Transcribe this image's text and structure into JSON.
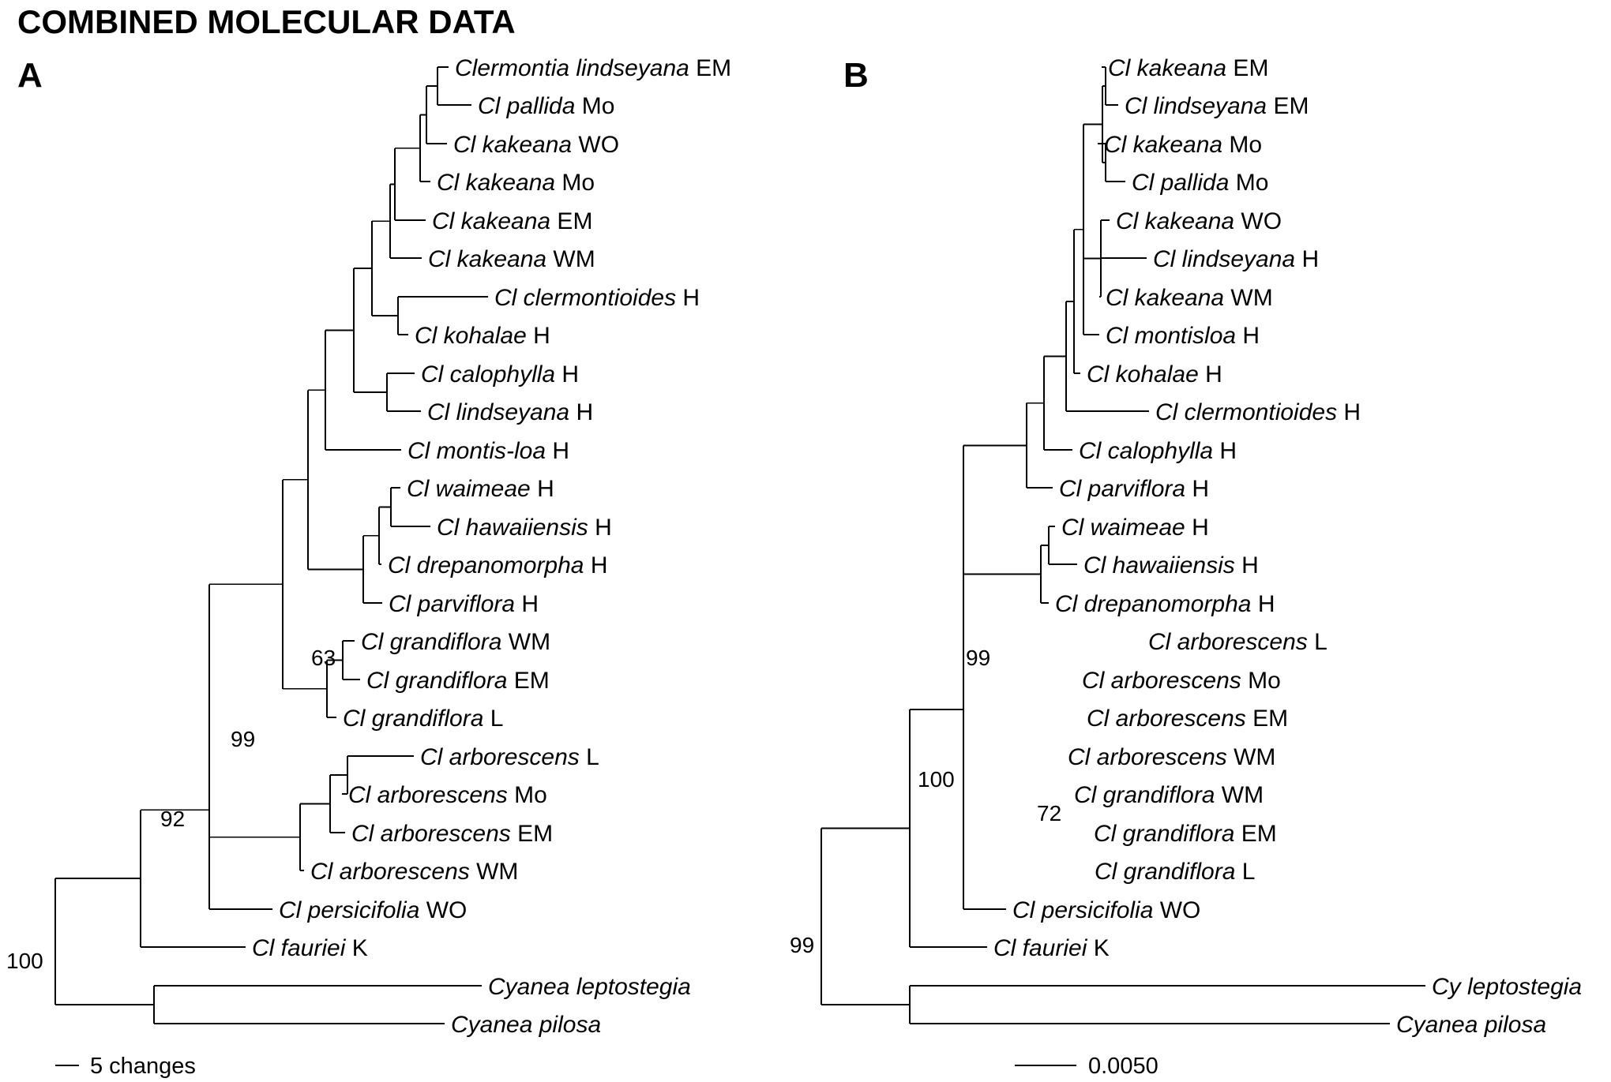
{
  "title": "COMBINED MOLECULAR DATA",
  "colors": {
    "line": "#000000",
    "text": "#000000",
    "background": "#ffffff"
  },
  "panels": [
    {
      "id": "A",
      "label": "A",
      "scale_label": "5 changes",
      "tips": [
        {
          "name": "Clermontia lindseyana",
          "region": "EM"
        },
        {
          "name": "Cl pallida",
          "region": "Mo"
        },
        {
          "name": "Cl kakeana",
          "region": "WO"
        },
        {
          "name": "Cl kakeana",
          "region": "Mo"
        },
        {
          "name": "Cl kakeana",
          "region": "EM"
        },
        {
          "name": "Cl kakeana",
          "region": "WM"
        },
        {
          "name": "Cl clermontioides",
          "region": "H"
        },
        {
          "name": "Cl kohalae",
          "region": "H"
        },
        {
          "name": "Cl calophylla",
          "region": "H"
        },
        {
          "name": "Cl lindseyana",
          "region": "H"
        },
        {
          "name": "Cl montis-loa",
          "region": "H"
        },
        {
          "name": "Cl waimeae",
          "region": "H"
        },
        {
          "name": "Cl hawaiiensis",
          "region": "H"
        },
        {
          "name": "Cl drepanomorpha",
          "region": "H"
        },
        {
          "name": "Cl parviflora",
          "region": "H"
        },
        {
          "name": "Cl grandiflora",
          "region": "WM"
        },
        {
          "name": "Cl grandiflora",
          "region": "EM"
        },
        {
          "name": "Cl grandiflora",
          "region": "L"
        },
        {
          "name": "Cl arborescens",
          "region": "L"
        },
        {
          "name": "Cl arborescens",
          "region": "Mo"
        },
        {
          "name": "Cl arborescens",
          "region": "EM"
        },
        {
          "name": "Cl arborescens",
          "region": "WM"
        },
        {
          "name": "Cl persicifolia",
          "region": "WO"
        },
        {
          "name": "Cl fauriei",
          "region": "K"
        },
        {
          "name": "Cyanea leptostegia",
          "region": ""
        },
        {
          "name": "Cyanea pilosa",
          "region": ""
        }
      ],
      "support_values": [
        "63",
        "99",
        "92",
        "100"
      ]
    },
    {
      "id": "B",
      "label": "B",
      "scale_label": "0.0050",
      "tips": [
        {
          "name": "Cl kakeana",
          "region": "EM"
        },
        {
          "name": "Cl lindseyana",
          "region": "EM"
        },
        {
          "name": "Cl kakeana",
          "region": "Mo"
        },
        {
          "name": "Cl pallida",
          "region": "Mo"
        },
        {
          "name": "Cl kakeana",
          "region": "WO"
        },
        {
          "name": "Cl lindseyana",
          "region": "H"
        },
        {
          "name": "Cl kakeana",
          "region": "WM"
        },
        {
          "name": "Cl montisloa",
          "region": "H"
        },
        {
          "name": "Cl kohalae",
          "region": "H"
        },
        {
          "name": "Cl clermontioides",
          "region": "H"
        },
        {
          "name": "Cl calophylla",
          "region": "H"
        },
        {
          "name": "Cl parviflora",
          "region": "H"
        },
        {
          "name": "Cl waimeae",
          "region": "H"
        },
        {
          "name": "Cl hawaiiensis",
          "region": "H"
        },
        {
          "name": "Cl drepanomorpha",
          "region": "H"
        },
        {
          "name": "Cl arborescens",
          "region": "L"
        },
        {
          "name": "Cl arborescens",
          "region": "Mo"
        },
        {
          "name": "Cl arborescens",
          "region": "EM"
        },
        {
          "name": "Cl arborescens",
          "region": "WM"
        },
        {
          "name": "Cl grandiflora",
          "region": "WM"
        },
        {
          "name": "Cl grandiflora",
          "region": "EM"
        },
        {
          "name": "Cl grandiflora",
          "region": "L"
        },
        {
          "name": "Cl persicifolia",
          "region": "WO"
        },
        {
          "name": "Cl fauriei",
          "region": "K"
        },
        {
          "name": "Cy leptostegia",
          "region": ""
        },
        {
          "name": "Cyanea pilosa",
          "region": ""
        }
      ],
      "support_values": [
        "99",
        "100",
        "72",
        "99"
      ]
    }
  ]
}
